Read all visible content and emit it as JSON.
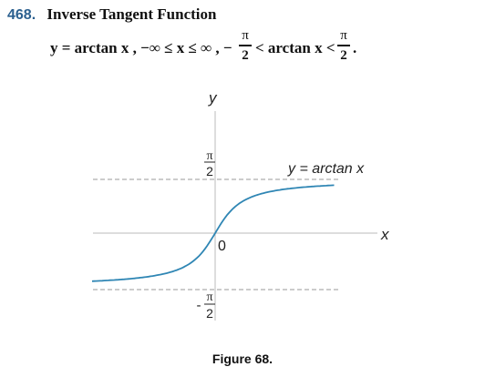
{
  "header": {
    "number": "468.",
    "title": "Inverse Tangent Function"
  },
  "formula": {
    "part1": "y = arctan x ,  −∞ ≤ x ≤ ∞ ,  −",
    "frac1_num": "π",
    "frac1_den": "2",
    "part2": "< arctan x <",
    "frac2_num": "π",
    "frac2_den": "2",
    "part3": "."
  },
  "graph": {
    "y_axis_label": "y",
    "x_axis_label": "x",
    "origin_label": "0",
    "top_tick": {
      "num": "π",
      "den": "2"
    },
    "bottom_tick": {
      "sign": "-",
      "num": "π",
      "den": "2"
    },
    "curve_label": "y = arctan x",
    "curve_color": "#2f86b4",
    "axis_color": "#bbbbbb",
    "x_range": [
      -6,
      5.8
    ]
  },
  "caption": "Figure 68."
}
